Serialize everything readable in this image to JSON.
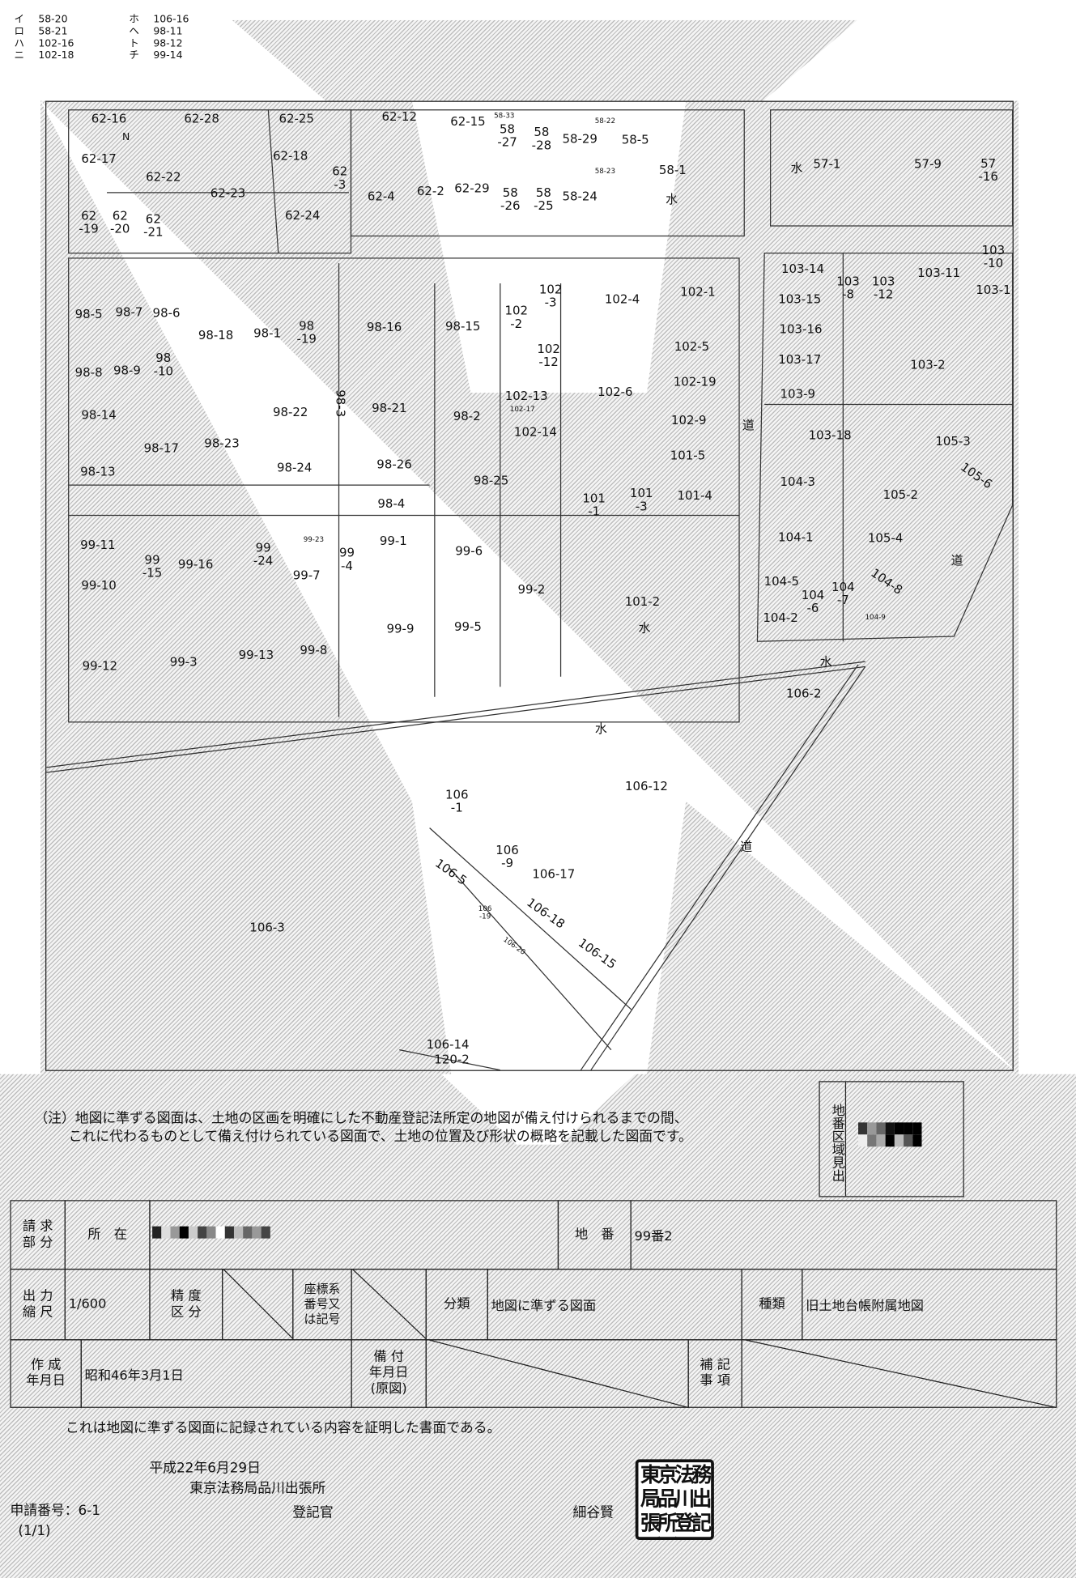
{
  "legend": [
    {
      "mark": "イ",
      "parcel": "58-20"
    },
    {
      "mark": "ホ",
      "parcel": "106-16"
    },
    {
      "mark": "ロ",
      "parcel": "58-21"
    },
    {
      "mark": "ヘ",
      "parcel": "98-11"
    },
    {
      "mark": "ハ",
      "parcel": "102-16"
    },
    {
      "mark": "ト",
      "parcel": "98-12"
    },
    {
      "mark": "ニ",
      "parcel": "102-18"
    },
    {
      "mark": "チ",
      "parcel": "99-14"
    }
  ],
  "map": {
    "north": "N",
    "parcels": [
      "62-16",
      "62-28",
      "62-25",
      "62-17",
      "62-22",
      "62-18",
      "62-23",
      "62\n-3",
      "62-4",
      "62-2",
      "62-29",
      "62-24",
      "62\n-19",
      "62\n-20",
      "62\n-21",
      "62-12",
      "62-15",
      "58\n-27",
      "58\n-28",
      "58-29",
      "58-5",
      "58\n-26",
      "58\n-25",
      "58-24",
      "58-1",
      "57-1",
      "57-9",
      "57\n-16",
      "58-33",
      "58-22",
      "58-23",
      "水",
      "水",
      "98-5",
      "98-7",
      "98-6",
      "98-18",
      "98-1",
      "98\n-19",
      "98-16",
      "98-15",
      "102\n-2",
      "102\n-3",
      "102-4",
      "102-1",
      "98-8",
      "98-9",
      "98\n-10",
      "102\n-12",
      "102-5",
      "98-14",
      "98-22",
      "98-3",
      "98-21",
      "98-2",
      "102-13",
      "102-17",
      "102-6",
      "102-19",
      "102-9",
      "98-17",
      "98-23",
      "102-14",
      "101-5",
      "98-13",
      "98-24",
      "98-26",
      "98-25",
      "101\n-1",
      "101\n-3",
      "101-4",
      "98-4",
      "99-11",
      "99\n-15",
      "99-16",
      "99\n-24",
      "99-1",
      "99\n-4",
      "99-7",
      "99-6",
      "99-10",
      "99-2",
      "101-2",
      "水",
      "99-9",
      "99-5",
      "99-12",
      "99-3",
      "99-13",
      "99-8",
      "99-23",
      "103-14",
      "103\n-8",
      "103\n-12",
      "103-11",
      "103\n-10",
      "103-1",
      "103-15",
      "103-16",
      "103-17",
      "103-2",
      "103-9",
      "103-18",
      "105-3",
      "道",
      "105-6",
      "104-3",
      "105-2",
      "104-1",
      "105-4",
      "道",
      "104-5",
      "104\n-6",
      "104\n-7",
      "104-8",
      "104-2",
      "104-9",
      "水",
      "106-2",
      "水",
      "106-12",
      "106\n-1",
      "道",
      "106\n-9",
      "106-17",
      "106-5",
      "106-18",
      "106\n-19",
      "106-15",
      "106-20",
      "106-3",
      "106-14",
      "120-2"
    ]
  },
  "note": {
    "line1": "（注）地図に準ずる図面は、土地の区画を明確にした不動産登記法所定の地図が備え付けられるまでの間、",
    "line2": "これに代わるものとして備え付けられている図面で、土地の位置及び形状の概略を記載した図面です。"
  },
  "index_box": {
    "label": "地番区域見出"
  },
  "form": {
    "request_label": "請 求\n部 分",
    "location_label": "所　在",
    "lot_label": "地　番",
    "lot_value": "99番2",
    "scale_label": "出 力\n縮 尺",
    "scale_value": "1/600",
    "accuracy_label": "精 度\n区 分",
    "coord_label": "座標系\n番号又\nは記号",
    "class_label": "分類",
    "class_value": "地図に準ずる図面",
    "type_label": "種類",
    "type_value": "旧土地台帳附属地図",
    "created_label": "作 成\n年月日",
    "created_value": "昭和46年3月1日",
    "installed_label": "備 付\n年月日\n(原図)",
    "remarks_label": "補 記\n事 項"
  },
  "certification": "これは地図に準ずる図面に記録されている内容を証明した書面である。",
  "issue_date": "平成22年6月29日",
  "office": "東京法務局品川出張所",
  "registrar_title": "登記官",
  "registrar_name": "細谷賢",
  "seal_text": "東京法務局品川出張所登記官之印",
  "application_no": "申請番号：6-1",
  "page": "(1/1)"
}
